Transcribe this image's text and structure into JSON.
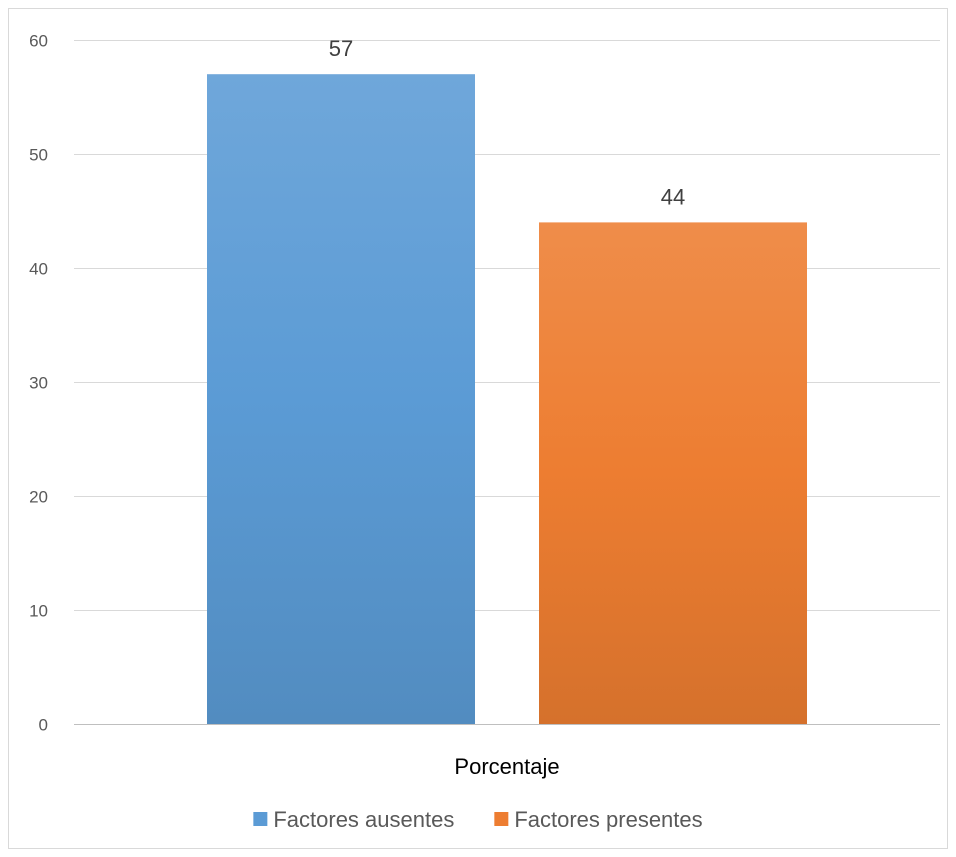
{
  "chart_data": {
    "type": "bar",
    "categories": [
      "Porcentaje"
    ],
    "series": [
      {
        "name": "Factores ausentes",
        "values": [
          57
        ],
        "color": "#5b9bd5"
      },
      {
        "name": "Factores presentes",
        "values": [
          44
        ],
        "color": "#ed7d31"
      }
    ],
    "title": "",
    "xlabel": "",
    "ylabel": "",
    "ylim": [
      0,
      60
    ],
    "yticks": [
      0,
      10,
      20,
      30,
      40,
      50,
      60
    ],
    "grid": true,
    "legend": "bottom",
    "data_labels": true
  }
}
